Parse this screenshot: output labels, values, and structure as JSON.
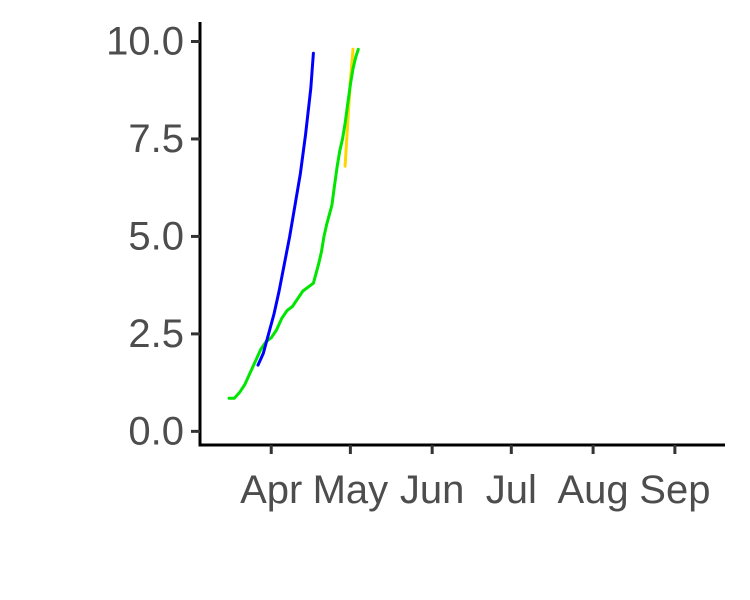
{
  "chart_data": {
    "type": "line",
    "title": "",
    "xlabel": "",
    "ylabel": "",
    "x_unit": "day of year",
    "xlim": [
      64,
      263
    ],
    "ylim": [
      -0.35,
      10.5
    ],
    "grid": false,
    "legend": "none",
    "yticks": [
      {
        "value": 0.0,
        "label": "0.0"
      },
      {
        "value": 2.5,
        "label": "2.5"
      },
      {
        "value": 5.0,
        "label": "5.0"
      },
      {
        "value": 7.5,
        "label": "7.5"
      },
      {
        "value": 10.0,
        "label": "10.0"
      }
    ],
    "xticks": [
      {
        "value": 91,
        "label": "Apr"
      },
      {
        "value": 121,
        "label": "May"
      },
      {
        "value": 152,
        "label": "Jun"
      },
      {
        "value": 182,
        "label": "Jul"
      },
      {
        "value": 213,
        "label": "Aug"
      },
      {
        "value": 244,
        "label": "Sep"
      }
    ],
    "series": [
      {
        "name": "yellow",
        "color": "#ffd700",
        "x": [
          119,
          120,
          121,
          122
        ],
        "y": [
          6.8,
          7.9,
          9.0,
          9.8
        ]
      },
      {
        "name": "green",
        "color": "#00e600",
        "x": [
          75,
          77,
          79,
          81,
          83,
          85,
          87,
          89,
          91,
          93,
          95,
          97,
          99,
          101,
          103,
          105,
          107,
          109,
          110,
          111,
          112,
          114,
          115,
          116,
          117,
          118,
          119,
          120,
          121,
          122,
          123,
          124
        ],
        "y": [
          0.85,
          0.85,
          1.0,
          1.2,
          1.5,
          1.8,
          2.1,
          2.3,
          2.4,
          2.6,
          2.9,
          3.1,
          3.2,
          3.4,
          3.6,
          3.7,
          3.8,
          4.3,
          4.6,
          5.0,
          5.3,
          5.8,
          6.3,
          6.8,
          7.2,
          7.5,
          7.9,
          8.4,
          8.9,
          9.3,
          9.6,
          9.8
        ]
      },
      {
        "name": "blue",
        "color": "#0000ff",
        "x": [
          86,
          88,
          90,
          92,
          94,
          96,
          98,
          100,
          102,
          104,
          106,
          107
        ],
        "y": [
          1.7,
          2.0,
          2.5,
          3.0,
          3.6,
          4.3,
          5.0,
          5.8,
          6.6,
          7.6,
          8.8,
          9.7
        ]
      }
    ]
  }
}
